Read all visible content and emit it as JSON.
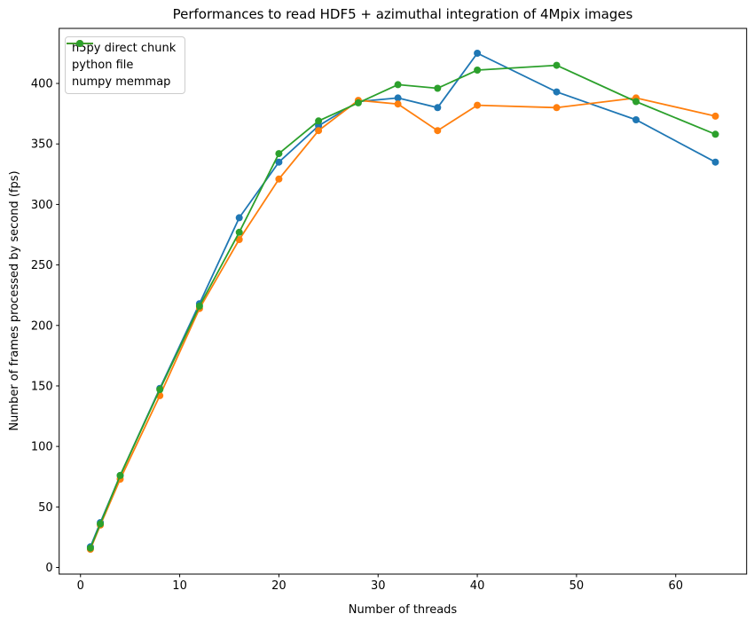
{
  "title": "Performances to read HDF5 + azimuthal integration of 4Mpix images",
  "chart_data": {
    "type": "line",
    "title": "Performances to read HDF5 + azimuthal integration of 4Mpix images",
    "xlabel": "Number of threads",
    "ylabel": "Number of frames processed by second (fps)",
    "x": [
      1,
      2,
      4,
      8,
      12,
      16,
      20,
      24,
      28,
      32,
      36,
      40,
      48,
      56,
      64
    ],
    "series": [
      {
        "name": "h5py direct chunk",
        "color": "#1f77b4",
        "values": [
          17,
          37,
          76,
          148,
          218,
          289,
          335,
          365,
          385,
          388,
          380,
          425,
          393,
          370,
          335
        ]
      },
      {
        "name": "python file",
        "color": "#ff7f0e",
        "values": [
          15,
          35,
          73,
          142,
          214,
          271,
          321,
          361,
          386,
          383,
          361,
          382,
          380,
          388,
          373
        ]
      },
      {
        "name": "numpy memmap",
        "color": "#2ca02c",
        "values": [
          16,
          36,
          76,
          147,
          216,
          277,
          342,
          369,
          384,
          399,
          396,
          411,
          415,
          385,
          358
        ]
      }
    ],
    "xticks": [
      0,
      10,
      20,
      30,
      40,
      50,
      60
    ],
    "yticks": [
      0,
      50,
      100,
      150,
      200,
      250,
      300,
      350,
      400
    ],
    "xlim": [
      -2.15,
      67.15
    ],
    "ylim": [
      -5.5,
      445.5
    ],
    "grid": false,
    "legend_position": "upper left",
    "axis_color": "#000000",
    "background_color": "#ffffff"
  }
}
